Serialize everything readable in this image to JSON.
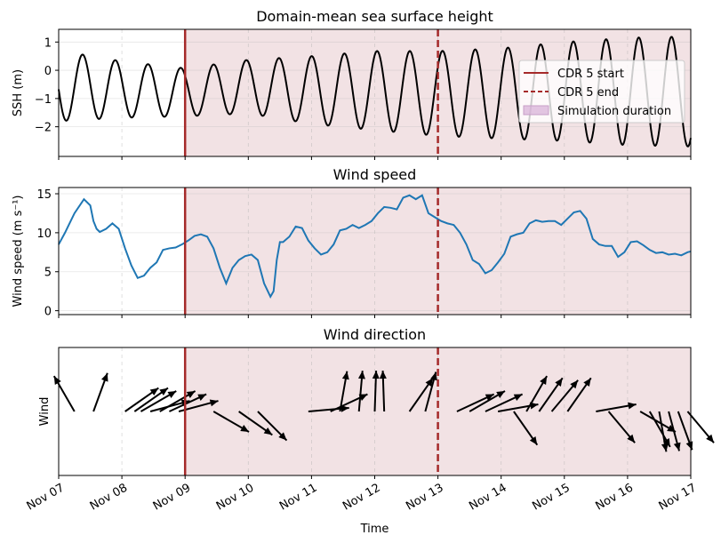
{
  "chart_data": [
    {
      "type": "line",
      "title": "Domain-mean sea surface height",
      "xlabel": "",
      "ylabel": "SSH (m)",
      "ylim": [
        -3.05,
        1.45
      ],
      "yticks": [
        1,
        0,
        -1,
        -2
      ],
      "yticklabels": [
        "1",
        "0",
        "−1",
        "−2"
      ],
      "xlim": [
        0,
        10
      ],
      "series": [
        {
          "color": "#000000",
          "tide": {
            "period_days": 0.5175,
            "first_peak_day": 0.38,
            "mean_anchors": [
              [
                0,
                -0.55
              ],
              [
                1,
                -0.68
              ],
              [
                2,
                -0.78
              ],
              [
                3,
                -0.58
              ],
              [
                4,
                -0.7
              ],
              [
                5,
                -0.72
              ],
              [
                6,
                -0.82
              ],
              [
                7,
                -0.82
              ],
              [
                8,
                -0.75
              ],
              [
                9,
                -0.75
              ],
              [
                10,
                -0.75
              ]
            ],
            "amp_anchors": [
              [
                0,
                1.25
              ],
              [
                1,
                1.0
              ],
              [
                2,
                0.85
              ],
              [
                3,
                0.95
              ],
              [
                4,
                1.2
              ],
              [
                5,
                1.4
              ],
              [
                6,
                1.5
              ],
              [
                7,
                1.6
              ],
              [
                8,
                1.75
              ],
              [
                9,
                1.9
              ],
              [
                10,
                1.95
              ]
            ]
          }
        }
      ],
      "vlines": {
        "start_day": 2,
        "end_day": 6
      },
      "shade": {
        "from_day": 2,
        "to_day": 10
      },
      "legend": {
        "position": "upper right",
        "entries": [
          {
            "label": "CDR 5 start",
            "style": "solid-line"
          },
          {
            "label": "CDR 5 end",
            "style": "dashed-line"
          },
          {
            "label": "Simulation duration",
            "style": "patch"
          }
        ]
      },
      "grid": true
    },
    {
      "type": "line",
      "title": "Wind speed",
      "xlabel": "",
      "ylabel": "Wind speed (m s⁻¹)",
      "ylim": [
        -0.5,
        15.8
      ],
      "yticks": [
        15,
        10,
        5,
        0
      ],
      "yticklabels": [
        "15",
        "10",
        "5",
        "0"
      ],
      "xlim": [
        0,
        10
      ],
      "series": [
        {
          "color": "#1f77b4",
          "x": [
            0,
            0.1,
            0.25,
            0.4,
            0.5,
            0.55,
            0.6,
            0.65,
            0.75,
            0.85,
            0.95,
            1.05,
            1.15,
            1.25,
            1.35,
            1.45,
            1.55,
            1.65,
            1.75,
            1.85,
            1.95,
            2.05,
            2.15,
            2.25,
            2.35,
            2.45,
            2.55,
            2.65,
            2.75,
            2.85,
            2.95,
            3.05,
            3.15,
            3.25,
            3.35,
            3.4,
            3.45,
            3.5,
            3.55,
            3.65,
            3.75,
            3.85,
            3.95,
            4.05,
            4.15,
            4.25,
            4.35,
            4.45,
            4.55,
            4.65,
            4.75,
            4.85,
            4.95,
            5.05,
            5.15,
            5.25,
            5.35,
            5.45,
            5.55,
            5.65,
            5.75,
            5.85,
            5.95,
            6.05,
            6.15,
            6.25,
            6.35,
            6.45,
            6.55,
            6.65,
            6.75,
            6.85,
            6.95,
            7.05,
            7.15,
            7.25,
            7.35,
            7.45,
            7.55,
            7.65,
            7.75,
            7.85,
            7.95,
            8.05,
            8.15,
            8.25,
            8.35,
            8.45,
            8.55,
            8.65,
            8.75,
            8.85,
            8.95,
            9.05,
            9.15,
            9.25,
            9.35,
            9.45,
            9.55,
            9.65,
            9.75,
            9.85,
            9.95,
            10
          ],
          "values": [
            8.5,
            10.0,
            12.5,
            14.3,
            13.5,
            11.5,
            10.5,
            10.1,
            10.5,
            11.2,
            10.5,
            8.0,
            5.8,
            4.2,
            4.5,
            5.5,
            6.2,
            7.8,
            8.0,
            8.1,
            8.5,
            9.0,
            9.6,
            9.8,
            9.5,
            8.0,
            5.5,
            3.5,
            5.5,
            6.5,
            7.0,
            7.2,
            6.5,
            3.5,
            1.8,
            2.5,
            6.5,
            8.8,
            8.8,
            9.5,
            10.8,
            10.6,
            9.0,
            8.0,
            7.2,
            7.5,
            8.5,
            10.3,
            10.5,
            11.0,
            10.6,
            11.0,
            11.5,
            12.5,
            13.3,
            13.2,
            13.0,
            14.5,
            14.8,
            14.3,
            14.8,
            12.5,
            12.0,
            11.5,
            11.2,
            11.0,
            10.0,
            8.5,
            6.5,
            6.0,
            4.8,
            5.2,
            6.2,
            7.3,
            9.5,
            9.8,
            10.0,
            11.2,
            11.6,
            11.4,
            11.5,
            11.5,
            11.0,
            11.8,
            12.6,
            12.8,
            11.8,
            9.2,
            8.5,
            8.3,
            8.3,
            6.9,
            7.5,
            8.8,
            8.9,
            8.4,
            7.8,
            7.4,
            7.5,
            7.2,
            7.3,
            7.1,
            7.5,
            7.6
          ]
        }
      ],
      "vlines": {
        "start_day": 2,
        "end_day": 6
      },
      "shade": {
        "from_day": 2,
        "to_day": 10
      },
      "grid": true
    },
    {
      "type": "quiver",
      "title": "Wind direction",
      "xlabel": "Time",
      "ylabel": "Wind",
      "xlim": [
        0,
        10
      ],
      "xticklabels": [
        "Nov 07",
        "Nov 08",
        "Nov 09",
        "Nov 10",
        "Nov 11",
        "Nov 12",
        "Nov 13",
        "Nov 14",
        "Nov 15",
        "Nov 16",
        "Nov 17"
      ],
      "arrows_wind_from_deg": [
        [
          0.25,
          150
        ],
        [
          0.55,
          200
        ],
        [
          1.05,
          235
        ],
        [
          1.2,
          235
        ],
        [
          1.3,
          240
        ],
        [
          1.45,
          255
        ],
        [
          1.6,
          240
        ],
        [
          1.75,
          245
        ],
        [
          1.9,
          255
        ],
        [
          2.45,
          300
        ],
        [
          2.85,
          305
        ],
        [
          3.15,
          315
        ],
        [
          3.95,
          265
        ],
        [
          4.3,
          245
        ],
        [
          4.45,
          190
        ],
        [
          4.75,
          185
        ],
        [
          5.0,
          182
        ],
        [
          5.15,
          178
        ],
        [
          5.55,
          215
        ],
        [
          5.8,
          195
        ],
        [
          6.3,
          245
        ],
        [
          6.5,
          240
        ],
        [
          6.75,
          245
        ],
        [
          6.95,
          260
        ],
        [
          7.2,
          325
        ],
        [
          7.4,
          210
        ],
        [
          7.6,
          215
        ],
        [
          7.8,
          220
        ],
        [
          8.05,
          215
        ],
        [
          8.5,
          260
        ],
        [
          8.7,
          320
        ],
        [
          9.2,
          300
        ],
        [
          9.35,
          330
        ],
        [
          9.5,
          350
        ],
        [
          9.65,
          345
        ],
        [
          9.8,
          340
        ],
        [
          9.95,
          320
        ]
      ],
      "vlines": {
        "start_day": 2,
        "end_day": 6
      },
      "shade": {
        "from_day": 2,
        "to_day": 10
      },
      "grid": true
    }
  ]
}
